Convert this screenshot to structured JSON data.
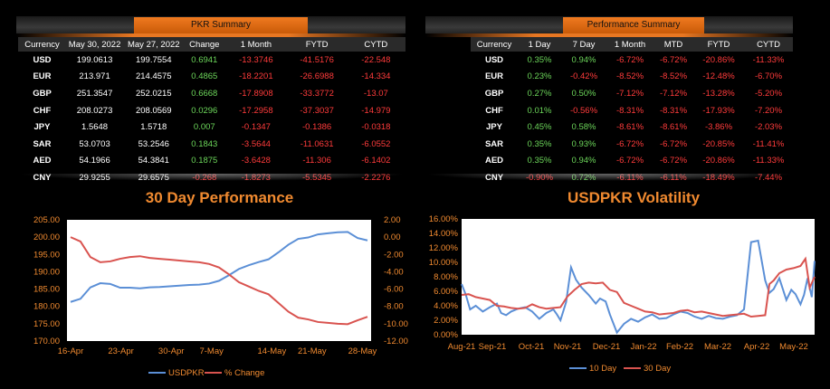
{
  "pkr_summary": {
    "title": "PKR Summary",
    "headers": [
      "Currency",
      "May 30, 2022",
      "May 27, 2022",
      "Change",
      "1 Month",
      "FYTD",
      "CYTD"
    ],
    "rows": [
      [
        "USD",
        "199.0613",
        "199.7554",
        "0.6941",
        "-13.3746",
        "-41.5176",
        "-22.548"
      ],
      [
        "EUR",
        "213.971",
        "214.4575",
        "0.4865",
        "-18.2201",
        "-26.6988",
        "-14.334"
      ],
      [
        "GBP",
        "251.3547",
        "252.0215",
        "0.6668",
        "-17.8908",
        "-33.3772",
        "-13.07"
      ],
      [
        "CHF",
        "208.0273",
        "208.0569",
        "0.0296",
        "-17.2958",
        "-37.3037",
        "-14.979"
      ],
      [
        "JPY",
        "1.5648",
        "1.5718",
        "0.007",
        "-0.1347",
        "-0.1386",
        "-0.0318"
      ],
      [
        "SAR",
        "53.0703",
        "53.2546",
        "0.1843",
        "-3.5644",
        "-11.0631",
        "-6.0552"
      ],
      [
        "AED",
        "54.1966",
        "54.3841",
        "0.1875",
        "-3.6428",
        "-11.306",
        "-6.1402"
      ],
      [
        "CNY",
        "29.9255",
        "29.6575",
        "-0.268",
        "-1.8273",
        "-5.5345",
        "-2.2276"
      ]
    ]
  },
  "performance_summary": {
    "title": "Performance Summary",
    "headers": [
      "Currency",
      "1 Day",
      "7 Day",
      "1 Month",
      "MTD",
      "FYTD",
      "CYTD"
    ],
    "rows": [
      [
        "USD",
        "0.35%",
        "0.94%",
        "-6.72%",
        "-6.72%",
        "-20.86%",
        "-11.33%"
      ],
      [
        "EUR",
        "0.23%",
        "-0.42%",
        "-8.52%",
        "-8.52%",
        "-12.48%",
        "-6.70%"
      ],
      [
        "GBP",
        "0.27%",
        "0.50%",
        "-7.12%",
        "-7.12%",
        "-13.28%",
        "-5.20%"
      ],
      [
        "CHF",
        "0.01%",
        "-0.56%",
        "-8.31%",
        "-8.31%",
        "-17.93%",
        "-7.20%"
      ],
      [
        "JPY",
        "0.45%",
        "0.58%",
        "-8.61%",
        "-8.61%",
        "-3.86%",
        "-2.03%"
      ],
      [
        "SAR",
        "0.35%",
        "0.93%",
        "-6.72%",
        "-6.72%",
        "-20.85%",
        "-11.41%"
      ],
      [
        "AED",
        "0.35%",
        "0.94%",
        "-6.72%",
        "-6.72%",
        "-20.86%",
        "-11.33%"
      ],
      [
        "CNY",
        "-0.90%",
        "0.72%",
        "-6.11%",
        "-6.11%",
        "-18.49%",
        "-7.44%"
      ]
    ]
  },
  "colors": {
    "positive": "#6cd65a",
    "negative": "#ff3b3b",
    "accent": "#e87722",
    "series_blue": "#5b8fd6",
    "series_red": "#d9534f",
    "title_orange": "#f08a30"
  },
  "chart_data": [
    {
      "type": "line",
      "title": "30 Day Performance",
      "x_ticks": [
        "16-Apr",
        "23-Apr",
        "30-Apr",
        "7-May",
        "14-May",
        "21-May",
        "28-May"
      ],
      "x": [
        "16-Apr",
        "18-Apr",
        "20-Apr",
        "21-Apr",
        "22-Apr",
        "25-Apr",
        "26-Apr",
        "27-Apr",
        "28-Apr",
        "29-Apr",
        "2-May",
        "3-May",
        "4-May",
        "5-May",
        "6-May",
        "9-May",
        "10-May",
        "11-May",
        "12-May",
        "13-May",
        "16-May",
        "17-May",
        "18-May",
        "19-May",
        "20-May",
        "23-May",
        "24-May",
        "25-May",
        "26-May",
        "27-May",
        "30-May"
      ],
      "y_left": {
        "min": 170,
        "max": 205,
        "ticks": [
          "170.00",
          "175.00",
          "180.00",
          "185.00",
          "190.00",
          "195.00",
          "200.00",
          "205.00"
        ]
      },
      "y_right": {
        "min": -12,
        "max": 2,
        "ticks": [
          "-12.00",
          "-10.00",
          "-8.00",
          "-6.00",
          "-4.00",
          "-2.00",
          "0.00",
          "2.00"
        ]
      },
      "series": [
        {
          "name": "USDPKR",
          "axis": "left",
          "values": [
            181.3,
            182.2,
            185.5,
            186.7,
            186.5,
            185.4,
            185.4,
            185.2,
            185.5,
            185.6,
            185.8,
            186.0,
            186.2,
            186.3,
            186.6,
            187.4,
            189.0,
            190.8,
            191.9,
            192.8,
            193.6,
            195.6,
            197.8,
            199.5,
            199.9,
            200.8,
            201.1,
            201.4,
            201.5,
            199.75,
            199.06
          ]
        },
        {
          "name": "% Change",
          "axis": "right",
          "values": [
            0.0,
            -0.5,
            -2.3,
            -2.9,
            -2.8,
            -2.5,
            -2.3,
            -2.2,
            -2.4,
            -2.5,
            -2.6,
            -2.7,
            -2.8,
            -2.9,
            -3.1,
            -3.5,
            -4.3,
            -5.2,
            -5.7,
            -6.2,
            -6.6,
            -7.6,
            -8.6,
            -9.3,
            -9.5,
            -9.8,
            -9.9,
            -10.0,
            -10.05,
            -9.6,
            -9.2
          ]
        }
      ]
    },
    {
      "type": "line",
      "title": "USDPKR Volatility",
      "x_ticks": [
        "Aug-21",
        "Sep-21",
        "Oct-21",
        "Nov-21",
        "Dec-21",
        "Jan-22",
        "Feb-22",
        "Mar-22",
        "Apr-22",
        "May-22"
      ],
      "y": {
        "min": 0,
        "max": 16,
        "ticks": [
          "0.00%",
          "2.00%",
          "4.00%",
          "6.00%",
          "8.00%",
          "10.00%",
          "12.00%",
          "14.00%",
          "16.00%"
        ]
      },
      "x_index_range": [
        0,
        50
      ],
      "series": [
        {
          "name": "10 Day",
          "x_index": [
            0,
            0.6,
            1.2,
            2,
            3,
            4,
            5,
            5.6,
            6.3,
            7,
            8,
            9,
            10,
            11,
            12,
            13,
            13.5,
            14,
            14.8,
            15.5,
            16.2,
            17,
            18,
            19,
            19.6,
            20.4,
            21,
            22,
            23,
            24,
            25,
            26,
            27,
            28,
            29,
            30,
            31,
            32,
            33,
            34,
            35,
            36,
            37,
            38,
            39,
            40,
            41,
            42,
            43,
            43.6,
            44.2,
            45,
            46,
            46.7,
            47.3,
            48,
            48.5,
            49,
            49.6,
            50
          ],
          "values": [
            7.0,
            5.5,
            3.5,
            4.0,
            3.2,
            3.8,
            4.3,
            3.0,
            2.7,
            3.2,
            3.6,
            3.8,
            3.2,
            2.2,
            3.0,
            3.5,
            2.8,
            2.0,
            4.5,
            9.3,
            7.6,
            6.5,
            5.5,
            4.3,
            5.0,
            4.6,
            2.8,
            0.3,
            1.5,
            2.2,
            1.8,
            2.4,
            2.8,
            2.2,
            2.3,
            2.8,
            3.2,
            3.0,
            2.5,
            2.2,
            2.6,
            2.3,
            2.2,
            2.5,
            2.7,
            3.5,
            12.8,
            13.0,
            7.5,
            5.8,
            6.3,
            7.8,
            4.8,
            6.2,
            5.6,
            4.2,
            5.5,
            7.8,
            5.2,
            10.2
          ]
        },
        {
          "name": "30 Day",
          "x_index": [
            0,
            1,
            2,
            3,
            4,
            5,
            6,
            7,
            8,
            9,
            10,
            11,
            12,
            13,
            14,
            15,
            16,
            17,
            18,
            19,
            20,
            21,
            22,
            23,
            24,
            25,
            26,
            27,
            28,
            29,
            30,
            31,
            32,
            33,
            34,
            35,
            36,
            37,
            38,
            39,
            40,
            41,
            42,
            43,
            43.6,
            44.2,
            45,
            46,
            47,
            48,
            48.7,
            49.3,
            50
          ],
          "values": [
            5.5,
            5.6,
            5.2,
            5.0,
            4.8,
            4.0,
            3.9,
            3.7,
            3.6,
            3.7,
            4.2,
            3.8,
            3.6,
            3.7,
            3.8,
            5.3,
            6.2,
            7.0,
            7.2,
            7.1,
            7.2,
            6.2,
            5.9,
            4.4,
            4.0,
            3.6,
            3.2,
            3.1,
            2.8,
            2.9,
            3.0,
            3.3,
            3.4,
            3.1,
            3.2,
            3.0,
            2.8,
            2.6,
            2.7,
            2.8,
            2.9,
            2.5,
            2.6,
            2.7,
            7.0,
            7.5,
            8.5,
            9.0,
            9.2,
            9.5,
            10.5,
            6.5,
            8.0
          ]
        }
      ]
    }
  ]
}
